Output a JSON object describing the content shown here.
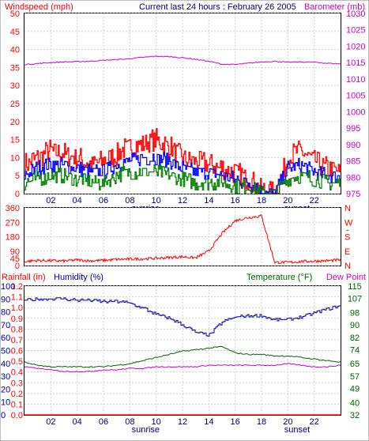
{
  "colors": {
    "wind_avg": "#0000ff",
    "wind_gust": "#ff0000",
    "wind_low": "#008000",
    "barometer": "#cc00cc",
    "direction": "#ff0000",
    "rainfall": "#ff0000",
    "humidity": "#0000a0",
    "temperature": "#006400",
    "dewpoint": "#cc00cc",
    "tick_left_top": "#ff0000",
    "tick_right_top": "#cc00cc"
  },
  "chart_data": [
    {
      "type": "line",
      "title": "Current last 24 hours : February 26 2005",
      "ylabel": "Windspeed (mph)",
      "ylabel_right": "Barometer (mb)",
      "xlim": [
        0,
        24
      ],
      "x_ticks": [
        "02",
        "04",
        "06",
        "08",
        "10",
        "12",
        "14",
        "16",
        "18",
        "20",
        "22"
      ],
      "x_tick_hours": [
        2,
        4,
        6,
        8,
        10,
        12,
        14,
        16,
        18,
        20,
        22
      ],
      "markers": [
        {
          "label": "sunrise",
          "hour": 9.2
        },
        {
          "label": "sunset",
          "hour": 20.7
        }
      ],
      "ylim": [
        0,
        50
      ],
      "y_ticks": [
        0,
        5,
        10,
        15,
        20,
        25,
        30,
        35,
        40,
        45,
        50
      ],
      "ylim_right": [
        975,
        1030
      ],
      "y_ticks_right": [
        975,
        980,
        985,
        990,
        995,
        1000,
        1005,
        1010,
        1015,
        1020,
        1025,
        1030
      ],
      "grid": true,
      "series": [
        {
          "name": "",
          "role": "gust",
          "x": [
            0,
            1,
            2,
            3,
            4,
            5,
            6,
            7,
            8,
            9,
            10,
            11,
            12,
            13,
            14,
            15,
            16,
            17,
            18,
            19,
            20,
            21,
            22,
            23,
            24
          ],
          "values": [
            8,
            10,
            12,
            11,
            10,
            8,
            9,
            11,
            13,
            14,
            15,
            13,
            10,
            9,
            8,
            7,
            6,
            4,
            1,
            0,
            10,
            12,
            9,
            7,
            6
          ]
        },
        {
          "name": "",
          "role": "average",
          "x": [
            0,
            1,
            2,
            3,
            4,
            5,
            6,
            7,
            8,
            9,
            10,
            11,
            12,
            13,
            14,
            15,
            16,
            17,
            18,
            19,
            20,
            21,
            22,
            23,
            24
          ],
          "values": [
            5,
            7,
            8,
            8,
            7,
            6,
            6,
            8,
            9,
            10,
            10,
            9,
            7,
            6,
            6,
            5,
            4,
            3,
            1,
            0,
            7,
            8,
            6,
            5,
            5
          ]
        },
        {
          "name": "",
          "role": "low",
          "x": [
            0,
            1,
            2,
            3,
            4,
            5,
            6,
            7,
            8,
            9,
            10,
            11,
            12,
            13,
            14,
            15,
            16,
            17,
            18,
            19,
            20,
            21,
            22,
            23,
            24
          ],
          "values": [
            3,
            4,
            5,
            5,
            4,
            3,
            3,
            5,
            6,
            6,
            6,
            5,
            4,
            3,
            3,
            3,
            2,
            2,
            0,
            0,
            4,
            5,
            4,
            3,
            3
          ]
        },
        {
          "name": "",
          "role": "barometer",
          "axis": "right",
          "x": [
            0,
            1,
            2,
            3,
            4,
            5,
            6,
            7,
            8,
            9,
            10,
            11,
            12,
            13,
            14,
            15,
            16,
            17,
            18,
            19,
            20,
            21,
            22,
            23,
            24
          ],
          "values": [
            1014.4,
            1014.7,
            1015.0,
            1015.2,
            1015.3,
            1015.4,
            1015.7,
            1015.9,
            1016.2,
            1016.6,
            1016.9,
            1016.8,
            1016.5,
            1016.0,
            1015.4,
            1014.5,
            1014.4,
            1014.8,
            1015.2,
            1015.4,
            1015.1,
            1015.2,
            1015.1,
            1014.8,
            1014.6
          ]
        }
      ]
    },
    {
      "type": "line",
      "ylabel": "",
      "xlim": [
        0,
        24
      ],
      "ylim": [
        0,
        360
      ],
      "y_ticks": [
        0,
        45,
        90,
        180,
        270,
        360
      ],
      "y_ticks_right": [
        "N",
        "E",
        "S",
        "W",
        "N"
      ],
      "y_ticks_right_values": [
        0,
        90,
        180,
        270,
        360
      ],
      "grid": true,
      "series": [
        {
          "name": "",
          "role": "wind_direction",
          "x": [
            0,
            1,
            2,
            3,
            4,
            5,
            6,
            7,
            8,
            9,
            10,
            11,
            12,
            13,
            14,
            15,
            16,
            17,
            18,
            19,
            20,
            21,
            22,
            23,
            24
          ],
          "values": [
            25,
            32,
            30,
            28,
            35,
            30,
            32,
            38,
            40,
            42,
            45,
            50,
            55,
            48,
            90,
            200,
            280,
            300,
            310,
            20,
            20,
            25,
            28,
            30,
            35
          ]
        }
      ]
    },
    {
      "type": "line",
      "ylabel": "Rainfall (in)",
      "ylabel_2": "Humidity (%)",
      "ylabel_right": "Temperature (°F)",
      "ylabel_right_2": "Dew Point",
      "xlim": [
        0,
        24
      ],
      "x_ticks": [
        "02",
        "04",
        "06",
        "08",
        "10",
        "12",
        "14",
        "16",
        "18",
        "20",
        "22"
      ],
      "markers": [
        {
          "label": "sunrise",
          "hour": 9.2
        },
        {
          "label": "sunset",
          "hour": 20.7
        }
      ],
      "ylim": [
        0,
        1.2
      ],
      "rain_ticks": [
        "0.0",
        "0.1",
        "0.2",
        "0.3",
        "0.4",
        "0.5",
        "0.6",
        "0.7",
        "0.8",
        "0.9",
        "1.0",
        "1.1",
        "1.2"
      ],
      "rain_tick_values": [
        0,
        0.1,
        0.2,
        0.3,
        0.4,
        0.5,
        0.6,
        0.7,
        0.8,
        0.9,
        1.0,
        1.1,
        1.2
      ],
      "humidity_ticks": [
        "0",
        "10",
        "20",
        "30",
        "40",
        "50",
        "60",
        "70",
        "80",
        "90",
        "100"
      ],
      "humidity_tick_values": [
        0,
        10,
        20,
        30,
        40,
        50,
        60,
        70,
        80,
        90,
        100
      ],
      "ylim_humidity": [
        0,
        100
      ],
      "ylim_right": [
        32,
        115
      ],
      "y_ticks_right": [
        32,
        40,
        49,
        57,
        65,
        74,
        82,
        90,
        98,
        107,
        115
      ],
      "grid": true,
      "series": [
        {
          "name": "",
          "role": "rainfall",
          "x": [
            0,
            24
          ],
          "values": [
            0,
            0
          ]
        },
        {
          "name": "",
          "role": "humidity",
          "x": [
            0,
            1,
            2,
            3,
            4,
            5,
            6,
            7,
            8,
            9,
            10,
            11,
            12,
            13,
            14,
            15,
            16,
            17,
            18,
            19,
            20,
            21,
            22,
            23,
            24
          ],
          "values": [
            89,
            90,
            90,
            90,
            89,
            89,
            88,
            88,
            87,
            83,
            78,
            75,
            70,
            64,
            62,
            72,
            76,
            77,
            77,
            74,
            74,
            76,
            79,
            82,
            85
          ]
        },
        {
          "name": "",
          "role": "temperature",
          "axis": "right",
          "x": [
            0,
            1,
            2,
            3,
            4,
            5,
            6,
            7,
            8,
            9,
            10,
            11,
            12,
            13,
            14,
            15,
            16,
            17,
            18,
            19,
            20,
            21,
            22,
            23,
            24
          ],
          "values": [
            66,
            64,
            63,
            63,
            63,
            63,
            63,
            64,
            65,
            67,
            69,
            71,
            73,
            74,
            75,
            76,
            72,
            71,
            71,
            70,
            70,
            69,
            68,
            67,
            66
          ]
        },
        {
          "name": "",
          "role": "dewpoint",
          "axis": "right",
          "x": [
            0,
            1,
            2,
            3,
            4,
            5,
            6,
            7,
            8,
            9,
            10,
            11,
            12,
            13,
            14,
            15,
            16,
            17,
            18,
            19,
            20,
            21,
            22,
            23,
            24
          ],
          "values": [
            63,
            62,
            61,
            60,
            60,
            60,
            61,
            61,
            62,
            62,
            63,
            63,
            63,
            63,
            64,
            64,
            64,
            64,
            64,
            64,
            65,
            64,
            63,
            63,
            64
          ]
        }
      ]
    }
  ]
}
